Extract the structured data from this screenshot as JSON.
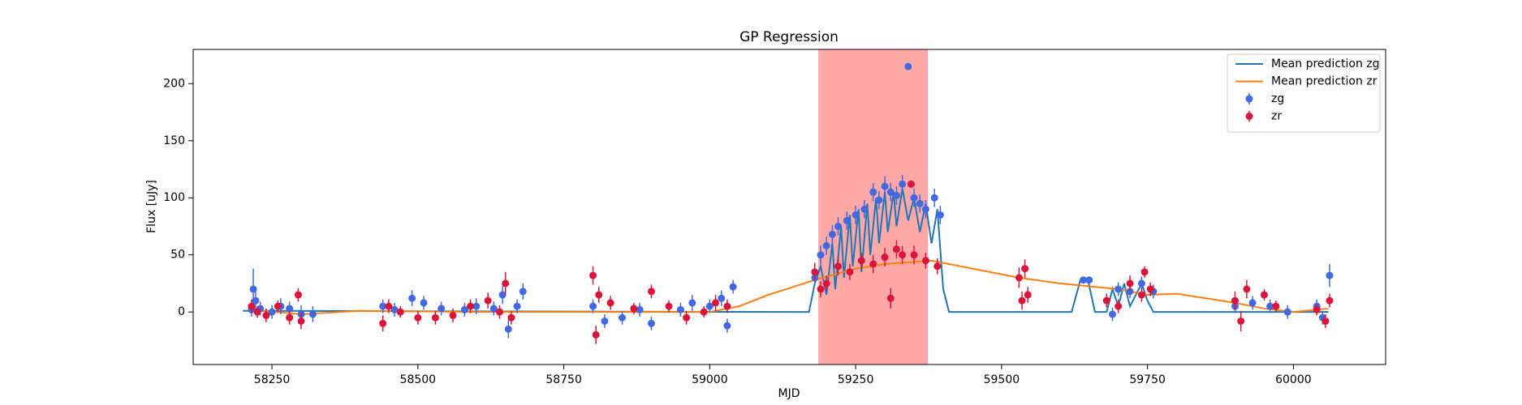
{
  "chart_data": {
    "type": "errorbar",
    "title": "GP Regression",
    "xlabel": "MJD",
    "ylabel": "Flux [uJy]",
    "xlim": [
      58115,
      60158
    ],
    "ylim": [
      -46,
      230
    ],
    "xticks": [
      58250,
      58500,
      58750,
      59000,
      59250,
      59500,
      59750,
      60000
    ],
    "yticks": [
      0,
      50,
      100,
      150,
      200
    ],
    "grid": false,
    "legend": "upper right",
    "span": [
      59186,
      59374
    ],
    "span_color": "#ff0000",
    "series": [
      {
        "name": "Mean prediction zg",
        "kind": "line",
        "color": "#1f77b4",
        "x": [
          58200,
          59150,
          59170,
          59180,
          59190,
          59200,
          59210,
          59215,
          59225,
          59230,
          59240,
          59245,
          59255,
          59260,
          59270,
          59275,
          59285,
          59290,
          59300,
          59305,
          59315,
          59320,
          59330,
          59340,
          59350,
          59360,
          59370,
          59380,
          59390,
          59400,
          59410,
          59620,
          59635,
          59648,
          59660,
          59680,
          59690,
          59700,
          59710,
          59720,
          59740,
          59750,
          59760,
          60060
        ],
        "values": [
          1,
          0,
          0,
          25,
          40,
          15,
          60,
          20,
          75,
          30,
          85,
          40,
          90,
          35,
          95,
          50,
          100,
          60,
          105,
          70,
          105,
          75,
          108,
          80,
          100,
          70,
          95,
          60,
          90,
          20,
          0,
          0,
          28,
          28,
          0,
          0,
          20,
          5,
          25,
          5,
          25,
          10,
          0,
          0
        ]
      },
      {
        "name": "Mean prediction zr",
        "kind": "line",
        "color": "#ff7f0e",
        "x": [
          58215,
          58300,
          58400,
          58600,
          58800,
          59000,
          59050,
          59100,
          59180,
          59250,
          59300,
          59380,
          59450,
          59530,
          59600,
          59700,
          59750,
          59800,
          59850,
          59900,
          59950,
          60000,
          60060
        ],
        "values": [
          2,
          -2,
          1,
          0,
          0,
          0,
          5,
          15,
          28,
          38,
          42,
          45,
          38,
          30,
          25,
          20,
          15,
          16,
          12,
          8,
          3,
          0,
          3
        ]
      },
      {
        "name": "zg",
        "kind": "points",
        "color": "#4169e1",
        "x": [
          58215,
          58218,
          58222,
          58230,
          58250,
          58265,
          58280,
          58300,
          58320,
          58440,
          58460,
          58490,
          58510,
          58540,
          58580,
          58600,
          58630,
          58645,
          58655,
          58670,
          58680,
          58800,
          58820,
          58850,
          58880,
          58900,
          58950,
          58970,
          59000,
          59020,
          59030,
          59040,
          59180,
          59190,
          59200,
          59210,
          59220,
          59235,
          59250,
          59265,
          59280,
          59290,
          59300,
          59310,
          59320,
          59330,
          59340,
          59350,
          59360,
          59370,
          59385,
          59395,
          59640,
          59650,
          59690,
          59700,
          59720,
          59740,
          59760,
          59900,
          59930,
          59960,
          59990,
          60040,
          60050,
          60062
        ],
        "values": [
          2,
          20,
          10,
          3,
          0,
          5,
          3,
          -2,
          -2,
          5,
          2,
          12,
          8,
          3,
          2,
          5,
          3,
          15,
          -15,
          5,
          18,
          5,
          -8,
          -5,
          2,
          -10,
          2,
          8,
          5,
          12,
          -12,
          22,
          30,
          50,
          58,
          68,
          75,
          80,
          85,
          90,
          105,
          98,
          110,
          105,
          102,
          112,
          215,
          100,
          95,
          90,
          100,
          85,
          28,
          28,
          -2,
          20,
          18,
          25,
          18,
          5,
          8,
          5,
          0,
          5,
          -5,
          32
        ],
        "errors": [
          6,
          18,
          8,
          6,
          6,
          7,
          6,
          8,
          7,
          6,
          6,
          7,
          6,
          6,
          6,
          7,
          6,
          8,
          8,
          6,
          7,
          6,
          6,
          6,
          6,
          6,
          6,
          7,
          6,
          7,
          6,
          6,
          7,
          8,
          8,
          8,
          8,
          8,
          8,
          8,
          8,
          8,
          9,
          8,
          8,
          8,
          0,
          8,
          8,
          8,
          8,
          8,
          2,
          2,
          6,
          6,
          6,
          6,
          6,
          6,
          6,
          6,
          6,
          6,
          6,
          10
        ]
      },
      {
        "name": "zr",
        "kind": "points",
        "color": "#dc143c",
        "x": [
          58215,
          58225,
          58240,
          58260,
          58280,
          58295,
          58300,
          58440,
          58450,
          58470,
          58500,
          58530,
          58560,
          58590,
          58620,
          58640,
          58650,
          58660,
          58800,
          58805,
          58810,
          58830,
          58870,
          58900,
          58930,
          58960,
          58990,
          59010,
          59030,
          59180,
          59190,
          59200,
          59220,
          59240,
          59260,
          59280,
          59300,
          59310,
          59320,
          59330,
          59345,
          59350,
          59370,
          59390,
          59530,
          59535,
          59540,
          59545,
          59680,
          59700,
          59720,
          59740,
          59745,
          59755,
          59900,
          59910,
          59920,
          59950,
          59970,
          60040,
          60055,
          60062
        ],
        "values": [
          5,
          0,
          -3,
          5,
          -5,
          15,
          -8,
          -10,
          5,
          0,
          -5,
          -5,
          -3,
          5,
          10,
          0,
          25,
          -5,
          32,
          -20,
          15,
          8,
          3,
          18,
          5,
          -5,
          0,
          8,
          5,
          35,
          20,
          25,
          40,
          35,
          45,
          42,
          48,
          12,
          55,
          50,
          112,
          50,
          45,
          40,
          30,
          10,
          38,
          15,
          10,
          5,
          25,
          15,
          35,
          20,
          10,
          -8,
          20,
          15,
          5,
          2,
          -8,
          10
        ],
        "errors": [
          6,
          5,
          6,
          5,
          6,
          6,
          7,
          7,
          6,
          5,
          6,
          6,
          6,
          6,
          7,
          6,
          10,
          6,
          8,
          8,
          7,
          6,
          5,
          6,
          5,
          6,
          5,
          7,
          6,
          8,
          7,
          7,
          8,
          7,
          7,
          8,
          8,
          9,
          8,
          8,
          0,
          8,
          7,
          7,
          9,
          8,
          8,
          7,
          6,
          6,
          7,
          6,
          5,
          6,
          8,
          9,
          8,
          5,
          5,
          5,
          6,
          6
        ]
      }
    ]
  }
}
